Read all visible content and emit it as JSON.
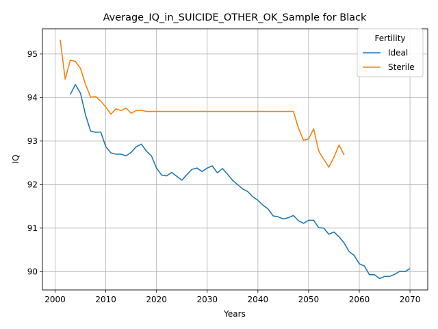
{
  "chart_data": {
    "type": "line",
    "title": "Average_IQ_in_SUICIDE_OTHER_OK_Sample for Black",
    "xlabel": "Years",
    "ylabel": "IQ",
    "xlim": [
      1997.5,
      2073.5
    ],
    "ylim": [
      89.58,
      95.58
    ],
    "xticks": [
      2000,
      2010,
      2020,
      2030,
      2040,
      2050,
      2060,
      2070
    ],
    "yticks": [
      90,
      91,
      92,
      93,
      94,
      95
    ],
    "grid": true,
    "legend": {
      "title": "Fertility",
      "placement": "top-right"
    },
    "series": [
      {
        "name": "Ideal",
        "color": "#1f77b4",
        "x": [
          2003,
          2004,
          2005,
          2006,
          2007,
          2008,
          2009,
          2010,
          2011,
          2012,
          2013,
          2014,
          2015,
          2016,
          2017,
          2018,
          2019,
          2020,
          2021,
          2022,
          2023,
          2024,
          2025,
          2026,
          2027,
          2028,
          2029,
          2030,
          2031,
          2032,
          2033,
          2034,
          2035,
          2036,
          2037,
          2038,
          2039,
          2040,
          2041,
          2042,
          2043,
          2044,
          2045,
          2046,
          2047,
          2048,
          2049,
          2050,
          2051,
          2052,
          2053,
          2054,
          2055,
          2056,
          2057,
          2058,
          2059,
          2060,
          2061,
          2062,
          2063,
          2064,
          2065,
          2066,
          2067,
          2068,
          2069,
          2070
        ],
        "y": [
          94.07,
          94.3,
          94.1,
          93.6,
          93.23,
          93.2,
          93.21,
          92.87,
          92.73,
          92.7,
          92.7,
          92.66,
          92.74,
          92.87,
          92.93,
          92.77,
          92.66,
          92.38,
          92.22,
          92.2,
          92.28,
          92.19,
          92.1,
          92.23,
          92.35,
          92.38,
          92.3,
          92.38,
          92.43,
          92.27,
          92.37,
          92.24,
          92.1,
          92.0,
          91.9,
          91.84,
          91.72,
          91.64,
          91.53,
          91.44,
          91.28,
          91.26,
          91.21,
          91.24,
          91.29,
          91.17,
          91.11,
          91.18,
          91.18,
          91.01,
          91.0,
          90.86,
          90.91,
          90.8,
          90.66,
          90.46,
          90.37,
          90.18,
          90.13,
          89.93,
          89.93,
          89.84,
          89.89,
          89.89,
          89.94,
          90.01,
          90.0,
          90.07
        ]
      },
      {
        "name": "Sterile",
        "color": "#ff7f0e",
        "x": [
          2001,
          2002,
          2003,
          2004,
          2005,
          2006,
          2007,
          2008,
          2009,
          2010,
          2011,
          2012,
          2013,
          2014,
          2015,
          2016,
          2017,
          2018,
          2019,
          2020,
          2021,
          2022,
          2023,
          2024,
          2025,
          2026,
          2027,
          2028,
          2029,
          2030,
          2031,
          2032,
          2033,
          2034,
          2035,
          2036,
          2037,
          2038,
          2039,
          2040,
          2041,
          2042,
          2043,
          2044,
          2045,
          2046,
          2047,
          2048,
          2049,
          2050,
          2051,
          2052,
          2053,
          2054,
          2055,
          2056,
          2057
        ],
        "y": [
          95.33,
          94.42,
          94.86,
          94.83,
          94.67,
          94.3,
          94.01,
          94.02,
          93.92,
          93.78,
          93.62,
          93.74,
          93.7,
          93.76,
          93.64,
          93.7,
          93.71,
          93.68,
          93.68,
          93.68,
          93.68,
          93.68,
          93.68,
          93.68,
          93.68,
          93.68,
          93.68,
          93.68,
          93.68,
          93.68,
          93.68,
          93.68,
          93.68,
          93.68,
          93.68,
          93.68,
          93.68,
          93.68,
          93.68,
          93.68,
          93.68,
          93.68,
          93.68,
          93.68,
          93.68,
          93.68,
          93.68,
          93.3,
          93.02,
          93.05,
          93.28,
          92.77,
          92.58,
          92.4,
          92.63,
          92.91,
          92.68
        ]
      }
    ]
  }
}
